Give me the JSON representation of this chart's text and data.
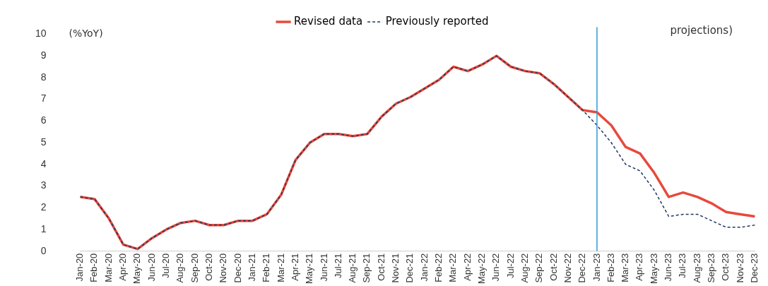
{
  "chart_data": {
    "type": "line",
    "ylabel": "(%YoY)",
    "categories": [
      "Jan-20",
      "Feb-20",
      "Mar-20",
      "Apr-20",
      "May-20",
      "Jun-20",
      "Jul-20",
      "Aug-20",
      "Sep-20",
      "Oct-20",
      "Nov-20",
      "Dec-20",
      "Jan-21",
      "Feb-21",
      "Mar-21",
      "Apr-21",
      "May-21",
      "Jun-21",
      "Jul-21",
      "Aug-21",
      "Sep-21",
      "Oct-21",
      "Nov-21",
      "Dec-21",
      "Jan-22",
      "Feb-22",
      "Mar-22",
      "Apr-22",
      "May-22",
      "Jun-22",
      "Jul-22",
      "Aug-22",
      "Sep-22",
      "Oct-22",
      "Nov-22",
      "Dec-22",
      "Jan-23",
      "Feb-23",
      "Mar-23",
      "Apr-23",
      "May-23",
      "Jun-23",
      "Jul-23",
      "Aug-23",
      "Sep-23",
      "Oct-23",
      "Nov-23",
      "Dec-23"
    ],
    "series": [
      {
        "name": "Revised data",
        "color": "#e8493a",
        "line_style": "solid",
        "values": [
          2.5,
          2.4,
          1.5,
          0.3,
          0.1,
          0.6,
          1.0,
          1.3,
          1.4,
          1.2,
          1.2,
          1.4,
          1.4,
          1.7,
          2.6,
          4.2,
          5.0,
          5.4,
          5.4,
          5.3,
          5.4,
          6.2,
          6.8,
          7.1,
          7.5,
          7.9,
          8.5,
          8.3,
          8.6,
          9.0,
          8.5,
          8.3,
          8.2,
          7.7,
          7.1,
          6.5,
          6.4,
          5.8,
          4.8,
          4.5,
          3.6,
          2.5,
          2.7,
          2.5,
          2.2,
          1.8,
          1.7,
          1.6
        ]
      },
      {
        "name": "Previously reported",
        "color": "#1f3864",
        "line_style": "dashed",
        "values": [
          2.5,
          2.4,
          1.5,
          0.3,
          0.1,
          0.6,
          1.0,
          1.3,
          1.4,
          1.2,
          1.2,
          1.4,
          1.4,
          1.7,
          2.6,
          4.2,
          5.0,
          5.4,
          5.4,
          5.3,
          5.4,
          6.2,
          6.8,
          7.1,
          7.5,
          7.9,
          8.5,
          8.3,
          8.6,
          9.0,
          8.5,
          8.3,
          8.2,
          7.7,
          7.1,
          6.5,
          5.8,
          5.0,
          4.0,
          3.7,
          2.8,
          1.6,
          1.7,
          1.7,
          1.4,
          1.1,
          1.1,
          1.2
        ]
      }
    ],
    "ylim": [
      0,
      10
    ],
    "yticks": [
      0,
      1,
      2,
      3,
      4,
      5,
      6,
      7,
      8,
      9,
      10
    ],
    "ref_lines": [
      {
        "axis": "x",
        "value": "Jan-23",
        "color": "#2e9bd6"
      }
    ],
    "annotations": [
      "projections)"
    ],
    "grid": false,
    "legend": "top",
    "marker": "none"
  }
}
